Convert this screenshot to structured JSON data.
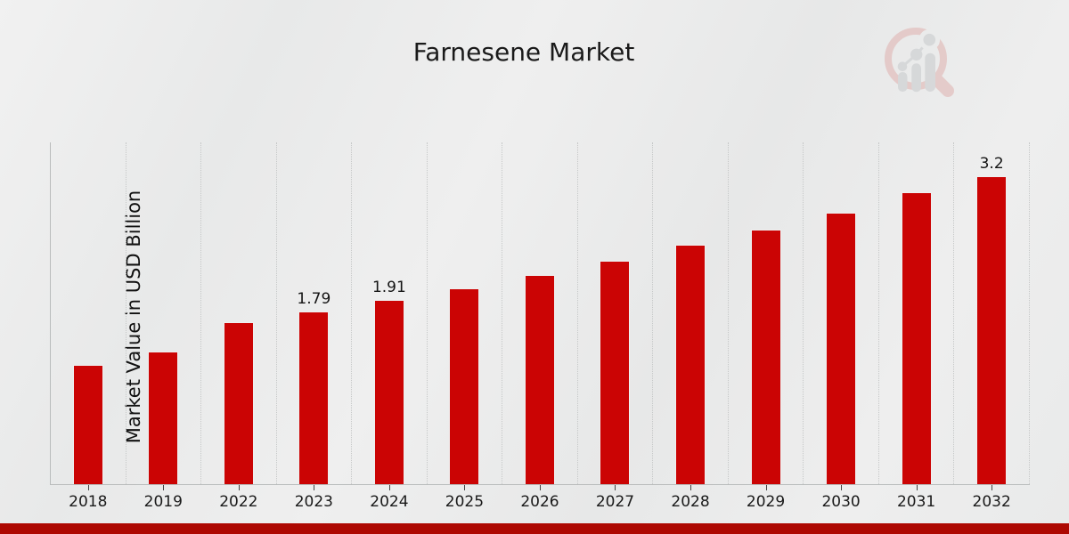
{
  "page": {
    "background_color": "#ebecec",
    "bottom_strip_color": "#ad0802"
  },
  "logo": {
    "description": "magnifier-growth-chart-watermark"
  },
  "chart_data": {
    "type": "bar",
    "title": "Farnesene Market",
    "ylabel": "Market Value in USD Billion",
    "xlabel": "",
    "categories": [
      "2018",
      "2019",
      "2022",
      "2023",
      "2024",
      "2025",
      "2026",
      "2027",
      "2028",
      "2029",
      "2030",
      "2031",
      "2032"
    ],
    "values": [
      1.24,
      1.38,
      1.68,
      1.79,
      1.91,
      2.03,
      2.17,
      2.32,
      2.49,
      2.64,
      2.82,
      3.03,
      3.2
    ],
    "bar_labels": {
      "2023": "1.79",
      "2024": "1.91",
      "2032": "3.2"
    },
    "ylim": [
      0,
      3.55
    ],
    "bar_color": "#cb0404",
    "grid": "vertical-dotted",
    "legend": "none"
  }
}
